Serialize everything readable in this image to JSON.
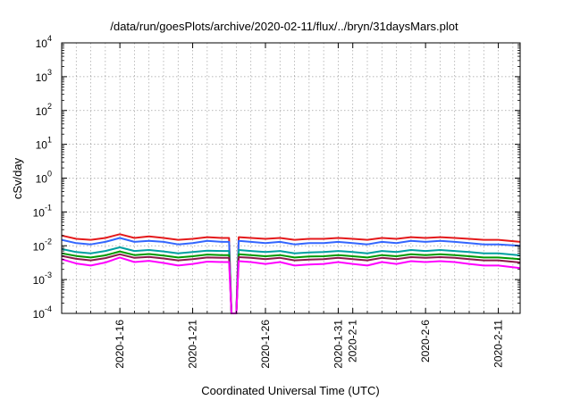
{
  "chart_data": {
    "type": "line",
    "title": "/data/run/goesPlots/archive/2020-02-11/flux/../bryn/31daysMars.plot",
    "xlabel": "Coordinated Universal Time (UTC)",
    "ylabel": "cSv/day",
    "yscale": "log",
    "ylim": [
      0.0001,
      10000
    ],
    "xlim": [
      "2020-01-12",
      "2020-02-12 12:00"
    ],
    "grid": true,
    "legend": "none",
    "y_ticks": [
      {
        "base": "10",
        "exp": "-4",
        "value": 0.0001
      },
      {
        "base": "10",
        "exp": "-3",
        "value": 0.001
      },
      {
        "base": "10",
        "exp": "-2",
        "value": 0.01
      },
      {
        "base": "10",
        "exp": "-1",
        "value": 0.1
      },
      {
        "base": "10",
        "exp": "0",
        "value": 1
      },
      {
        "base": "10",
        "exp": "1",
        "value": 10
      },
      {
        "base": "10",
        "exp": "2",
        "value": 100
      },
      {
        "base": "10",
        "exp": "3",
        "value": 1000
      },
      {
        "base": "10",
        "exp": "4",
        "value": 10000
      }
    ],
    "x_ticks": [
      {
        "label": "2020-1-16",
        "date": "2020-01-16"
      },
      {
        "label": "2020-1-21",
        "date": "2020-01-21"
      },
      {
        "label": "2020-1-26",
        "date": "2020-01-26"
      },
      {
        "label": "2020-1-31",
        "date": "2020-01-31"
      },
      {
        "label": "2020-2-1",
        "date": "2020-02-01"
      },
      {
        "label": "2020-2-6",
        "date": "2020-02-06"
      },
      {
        "label": "2020-2-11",
        "date": "2020-02-11"
      }
    ],
    "x_minor_grid": [
      "2020-01-13",
      "2020-01-14",
      "2020-01-15",
      "2020-01-17",
      "2020-01-18",
      "2020-01-19",
      "2020-01-20",
      "2020-01-22",
      "2020-01-23",
      "2020-01-24",
      "2020-01-25",
      "2020-01-27",
      "2020-01-28",
      "2020-01-29",
      "2020-01-30",
      "2020-02-02",
      "2020-02-03",
      "2020-02-04",
      "2020-02-05",
      "2020-02-07",
      "2020-02-08",
      "2020-02-09",
      "2020-02-10",
      "2020-02-12"
    ],
    "series": [
      {
        "color": "#e41a1c",
        "values": [
          [
            "2020-01-12",
            0.02
          ],
          [
            "2020-01-13",
            0.016
          ],
          [
            "2020-01-14",
            0.015
          ],
          [
            "2020-01-15",
            0.017
          ],
          [
            "2020-01-16",
            0.022
          ],
          [
            "2020-01-17",
            0.017
          ],
          [
            "2020-01-18",
            0.019
          ],
          [
            "2020-01-19",
            0.017
          ],
          [
            "2020-01-20",
            0.015
          ],
          [
            "2020-01-21",
            0.016
          ],
          [
            "2020-01-22",
            0.018
          ],
          [
            "2020-01-23",
            0.017
          ],
          [
            "2020-01-23 12:00",
            0.017
          ],
          [
            "2020-01-23 16:00",
            0.0001
          ],
          [
            "2020-01-24 00:00",
            0.0001
          ],
          [
            "2020-01-24 04:00",
            0.018
          ],
          [
            "2020-01-25",
            0.017
          ],
          [
            "2020-01-26",
            0.016
          ],
          [
            "2020-01-27",
            0.017
          ],
          [
            "2020-01-28",
            0.015
          ],
          [
            "2020-01-29",
            0.016
          ],
          [
            "2020-01-30",
            0.016
          ],
          [
            "2020-01-31",
            0.017
          ],
          [
            "2020-02-01",
            0.016
          ],
          [
            "2020-02-02",
            0.015
          ],
          [
            "2020-02-03",
            0.017
          ],
          [
            "2020-02-04",
            0.016
          ],
          [
            "2020-02-05",
            0.018
          ],
          [
            "2020-02-06",
            0.017
          ],
          [
            "2020-02-07",
            0.018
          ],
          [
            "2020-02-08",
            0.017
          ],
          [
            "2020-02-09",
            0.016
          ],
          [
            "2020-02-10",
            0.015
          ],
          [
            "2020-02-11",
            0.015
          ],
          [
            "2020-02-12 12:00",
            0.013
          ]
        ]
      },
      {
        "color": "#3366ff",
        "values": [
          [
            "2020-01-12",
            0.015
          ],
          [
            "2020-01-13",
            0.012
          ],
          [
            "2020-01-14",
            0.011
          ],
          [
            "2020-01-15",
            0.013
          ],
          [
            "2020-01-16",
            0.017
          ],
          [
            "2020-01-17",
            0.013
          ],
          [
            "2020-01-18",
            0.014
          ],
          [
            "2020-01-19",
            0.013
          ],
          [
            "2020-01-20",
            0.011
          ],
          [
            "2020-01-21",
            0.012
          ],
          [
            "2020-01-22",
            0.014
          ],
          [
            "2020-01-23",
            0.013
          ],
          [
            "2020-01-23 12:00",
            0.013
          ],
          [
            "2020-01-23 16:00",
            0.0001
          ],
          [
            "2020-01-24 00:00",
            0.0001
          ],
          [
            "2020-01-24 04:00",
            0.014
          ],
          [
            "2020-01-25",
            0.013
          ],
          [
            "2020-01-26",
            0.012
          ],
          [
            "2020-01-27",
            0.013
          ],
          [
            "2020-01-28",
            0.011
          ],
          [
            "2020-01-29",
            0.012
          ],
          [
            "2020-01-30",
            0.012
          ],
          [
            "2020-01-31",
            0.013
          ],
          [
            "2020-02-01",
            0.012
          ],
          [
            "2020-02-02",
            0.011
          ],
          [
            "2020-02-03",
            0.013
          ],
          [
            "2020-02-04",
            0.012
          ],
          [
            "2020-02-05",
            0.014
          ],
          [
            "2020-02-06",
            0.013
          ],
          [
            "2020-02-07",
            0.014
          ],
          [
            "2020-02-08",
            0.013
          ],
          [
            "2020-02-09",
            0.012
          ],
          [
            "2020-02-10",
            0.011
          ],
          [
            "2020-02-11",
            0.011
          ],
          [
            "2020-02-12 12:00",
            0.01
          ]
        ]
      },
      {
        "color": "#00a0a0",
        "values": [
          [
            "2020-01-12",
            0.008
          ],
          [
            "2020-01-13",
            0.0065
          ],
          [
            "2020-01-14",
            0.006
          ],
          [
            "2020-01-15",
            0.007
          ],
          [
            "2020-01-16",
            0.009
          ],
          [
            "2020-01-17",
            0.007
          ],
          [
            "2020-01-18",
            0.0075
          ],
          [
            "2020-01-19",
            0.0068
          ],
          [
            "2020-01-20",
            0.006
          ],
          [
            "2020-01-21",
            0.0065
          ],
          [
            "2020-01-22",
            0.0072
          ],
          [
            "2020-01-23",
            0.007
          ],
          [
            "2020-01-23 12:00",
            0.007
          ],
          [
            "2020-01-23 16:00",
            0.0001
          ],
          [
            "2020-01-24 00:00",
            0.0001
          ],
          [
            "2020-01-24 04:00",
            0.0075
          ],
          [
            "2020-01-25",
            0.007
          ],
          [
            "2020-01-26",
            0.0065
          ],
          [
            "2020-01-27",
            0.007
          ],
          [
            "2020-01-28",
            0.006
          ],
          [
            "2020-01-29",
            0.0063
          ],
          [
            "2020-01-30",
            0.0065
          ],
          [
            "2020-01-31",
            0.007
          ],
          [
            "2020-02-01",
            0.0065
          ],
          [
            "2020-02-02",
            0.006
          ],
          [
            "2020-02-03",
            0.007
          ],
          [
            "2020-02-04",
            0.0065
          ],
          [
            "2020-02-05",
            0.0075
          ],
          [
            "2020-02-06",
            0.007
          ],
          [
            "2020-02-07",
            0.0075
          ],
          [
            "2020-02-08",
            0.007
          ],
          [
            "2020-02-09",
            0.0065
          ],
          [
            "2020-02-10",
            0.006
          ],
          [
            "2020-02-11",
            0.006
          ],
          [
            "2020-02-12 12:00",
            0.0052
          ]
        ]
      },
      {
        "color": "#009900",
        "values": [
          [
            "2020-01-12",
            0.006
          ],
          [
            "2020-01-13",
            0.005
          ],
          [
            "2020-01-14",
            0.0045
          ],
          [
            "2020-01-15",
            0.0052
          ],
          [
            "2020-01-16",
            0.0068
          ],
          [
            "2020-01-17",
            0.0053
          ],
          [
            "2020-01-18",
            0.0057
          ],
          [
            "2020-01-19",
            0.0051
          ],
          [
            "2020-01-20",
            0.0045
          ],
          [
            "2020-01-21",
            0.0049
          ],
          [
            "2020-01-22",
            0.0055
          ],
          [
            "2020-01-23",
            0.0053
          ],
          [
            "2020-01-23 12:00",
            0.0053
          ],
          [
            "2020-01-23 16:00",
            0.0001
          ],
          [
            "2020-01-24 00:00",
            0.0001
          ],
          [
            "2020-01-24 04:00",
            0.0056
          ],
          [
            "2020-01-25",
            0.0053
          ],
          [
            "2020-01-26",
            0.0049
          ],
          [
            "2020-01-27",
            0.0053
          ],
          [
            "2020-01-28",
            0.0045
          ],
          [
            "2020-01-29",
            0.0048
          ],
          [
            "2020-01-30",
            0.0049
          ],
          [
            "2020-01-31",
            0.0053
          ],
          [
            "2020-02-01",
            0.0049
          ],
          [
            "2020-02-02",
            0.0045
          ],
          [
            "2020-02-03",
            0.0053
          ],
          [
            "2020-02-04",
            0.0049
          ],
          [
            "2020-02-05",
            0.0056
          ],
          [
            "2020-02-06",
            0.0053
          ],
          [
            "2020-02-07",
            0.0056
          ],
          [
            "2020-02-08",
            0.0053
          ],
          [
            "2020-02-09",
            0.0049
          ],
          [
            "2020-02-10",
            0.0045
          ],
          [
            "2020-02-11",
            0.0045
          ],
          [
            "2020-02-12 12:00",
            0.004
          ]
        ]
      },
      {
        "color": "#8b1a4a",
        "values": [
          [
            "2020-01-12",
            0.005
          ],
          [
            "2020-01-13",
            0.0041
          ],
          [
            "2020-01-14",
            0.0037
          ],
          [
            "2020-01-15",
            0.0043
          ],
          [
            "2020-01-16",
            0.0056
          ],
          [
            "2020-01-17",
            0.0044
          ],
          [
            "2020-01-18",
            0.0047
          ],
          [
            "2020-01-19",
            0.0042
          ],
          [
            "2020-01-20",
            0.0037
          ],
          [
            "2020-01-21",
            0.004
          ],
          [
            "2020-01-22",
            0.0045
          ],
          [
            "2020-01-23",
            0.0044
          ],
          [
            "2020-01-23 12:00",
            0.0044
          ],
          [
            "2020-01-23 16:00",
            0.0001
          ],
          [
            "2020-01-24 00:00",
            0.0001
          ],
          [
            "2020-01-24 04:00",
            0.0046
          ],
          [
            "2020-01-25",
            0.0044
          ],
          [
            "2020-01-26",
            0.004
          ],
          [
            "2020-01-27",
            0.0044
          ],
          [
            "2020-01-28",
            0.0037
          ],
          [
            "2020-01-29",
            0.0039
          ],
          [
            "2020-01-30",
            0.004
          ],
          [
            "2020-01-31",
            0.0044
          ],
          [
            "2020-02-01",
            0.004
          ],
          [
            "2020-02-02",
            0.0037
          ],
          [
            "2020-02-03",
            0.0044
          ],
          [
            "2020-02-04",
            0.004
          ],
          [
            "2020-02-05",
            0.0046
          ],
          [
            "2020-02-06",
            0.0044
          ],
          [
            "2020-02-07",
            0.0046
          ],
          [
            "2020-02-08",
            0.0044
          ],
          [
            "2020-02-09",
            0.004
          ],
          [
            "2020-02-10",
            0.0037
          ],
          [
            "2020-02-11",
            0.0037
          ],
          [
            "2020-02-12 12:00",
            0.0032
          ]
        ]
      },
      {
        "color": "#ff00ff",
        "values": [
          [
            "2020-01-12",
            0.004
          ],
          [
            "2020-01-13",
            0.003
          ],
          [
            "2020-01-14",
            0.0026
          ],
          [
            "2020-01-15",
            0.0032
          ],
          [
            "2020-01-16",
            0.0045
          ],
          [
            "2020-01-17",
            0.0033
          ],
          [
            "2020-01-18",
            0.0036
          ],
          [
            "2020-01-19",
            0.0031
          ],
          [
            "2020-01-20",
            0.0026
          ],
          [
            "2020-01-21",
            0.0029
          ],
          [
            "2020-01-22",
            0.0034
          ],
          [
            "2020-01-23",
            0.0033
          ],
          [
            "2020-01-23 12:00",
            0.0033
          ],
          [
            "2020-01-23 16:00",
            0.0001
          ],
          [
            "2020-01-24 00:00",
            0.0001
          ],
          [
            "2020-01-24 04:00",
            0.0035
          ],
          [
            "2020-01-25",
            0.0033
          ],
          [
            "2020-01-26",
            0.0029
          ],
          [
            "2020-01-27",
            0.0033
          ],
          [
            "2020-01-28",
            0.0026
          ],
          [
            "2020-01-29",
            0.0028
          ],
          [
            "2020-01-30",
            0.0029
          ],
          [
            "2020-01-31",
            0.0033
          ],
          [
            "2020-02-01",
            0.0029
          ],
          [
            "2020-02-02",
            0.0026
          ],
          [
            "2020-02-03",
            0.0033
          ],
          [
            "2020-02-04",
            0.0029
          ],
          [
            "2020-02-05",
            0.0035
          ],
          [
            "2020-02-06",
            0.0033
          ],
          [
            "2020-02-07",
            0.0035
          ],
          [
            "2020-02-08",
            0.0033
          ],
          [
            "2020-02-09",
            0.0029
          ],
          [
            "2020-02-10",
            0.0026
          ],
          [
            "2020-02-11",
            0.0026
          ],
          [
            "2020-02-12 12:00",
            0.0022
          ]
        ]
      }
    ]
  }
}
